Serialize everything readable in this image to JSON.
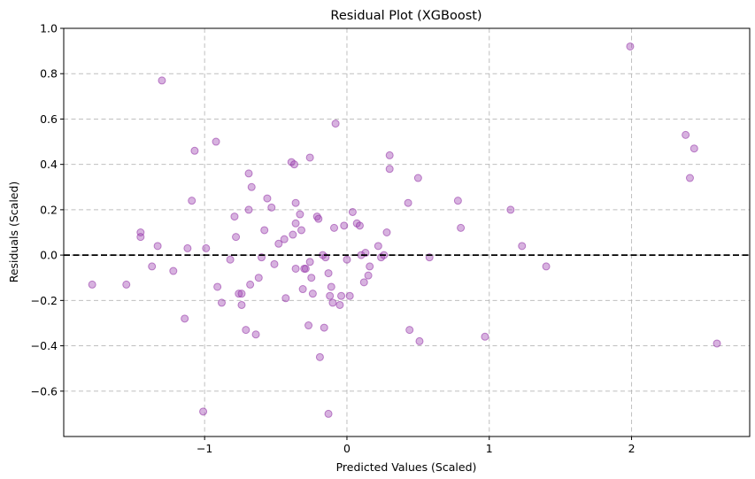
{
  "chart_data": {
    "type": "scatter",
    "title": "Residual Plot (XGBoost)",
    "xlabel": "Predicted Values (Scaled)",
    "ylabel": "Residuals (Scaled)",
    "xlim": [
      -1.99,
      2.83
    ],
    "ylim": [
      -0.8,
      1.0
    ],
    "x_ticks": [
      -1,
      0,
      1,
      2
    ],
    "x_tick_labels": [
      "−1",
      "0",
      "1",
      "2"
    ],
    "y_ticks": [
      -0.6,
      -0.4,
      -0.2,
      0.0,
      0.2,
      0.4,
      0.6,
      0.8,
      1.0
    ],
    "y_tick_labels": [
      "−0.6",
      "−0.4",
      "−0.2",
      "0.0",
      "0.2",
      "0.4",
      "0.6",
      "0.8",
      "1.0"
    ],
    "grid": true,
    "reference_line": {
      "y": 0,
      "style": "dashed",
      "color": "#000000"
    },
    "marker_color": "#9b3fae",
    "marker_edge_color": "#8e2aa3",
    "marker_opacity": 0.4,
    "points": [
      [
        -1.79,
        -0.13
      ],
      [
        -1.55,
        -0.13
      ],
      [
        -1.45,
        0.1
      ],
      [
        -1.45,
        0.08
      ],
      [
        -1.37,
        -0.05
      ],
      [
        -1.33,
        0.04
      ],
      [
        -1.3,
        0.77
      ],
      [
        -1.22,
        -0.07
      ],
      [
        -1.14,
        -0.28
      ],
      [
        -1.12,
        0.03
      ],
      [
        -1.09,
        0.24
      ],
      [
        -1.07,
        0.46
      ],
      [
        -1.01,
        -0.69
      ],
      [
        -0.99,
        0.03
      ],
      [
        -0.92,
        0.5
      ],
      [
        -0.91,
        -0.14
      ],
      [
        -0.88,
        -0.21
      ],
      [
        -0.82,
        -0.02
      ],
      [
        -0.79,
        0.17
      ],
      [
        -0.78,
        0.08
      ],
      [
        -0.76,
        -0.17
      ],
      [
        -0.74,
        -0.17
      ],
      [
        -0.74,
        -0.22
      ],
      [
        -0.71,
        -0.33
      ],
      [
        -0.69,
        0.36
      ],
      [
        -0.69,
        0.2
      ],
      [
        -0.68,
        -0.13
      ],
      [
        -0.67,
        0.3
      ],
      [
        -0.64,
        -0.35
      ],
      [
        -0.62,
        -0.1
      ],
      [
        -0.6,
        -0.01
      ],
      [
        -0.58,
        0.11
      ],
      [
        -0.56,
        0.25
      ],
      [
        -0.53,
        0.21
      ],
      [
        -0.51,
        -0.04
      ],
      [
        -0.48,
        0.05
      ],
      [
        -0.44,
        0.07
      ],
      [
        -0.43,
        -0.19
      ],
      [
        -0.39,
        0.41
      ],
      [
        -0.38,
        0.09
      ],
      [
        -0.37,
        0.4
      ],
      [
        -0.36,
        0.14
      ],
      [
        -0.36,
        0.23
      ],
      [
        -0.36,
        -0.06
      ],
      [
        -0.33,
        0.18
      ],
      [
        -0.32,
        0.11
      ],
      [
        -0.31,
        -0.15
      ],
      [
        -0.3,
        -0.06
      ],
      [
        -0.29,
        -0.06
      ],
      [
        -0.27,
        -0.31
      ],
      [
        -0.26,
        0.43
      ],
      [
        -0.26,
        -0.03
      ],
      [
        -0.25,
        -0.1
      ],
      [
        -0.24,
        -0.17
      ],
      [
        -0.21,
        0.17
      ],
      [
        -0.2,
        0.16
      ],
      [
        -0.19,
        -0.45
      ],
      [
        -0.17,
        0.0
      ],
      [
        -0.16,
        -0.32
      ],
      [
        -0.15,
        -0.01
      ],
      [
        -0.13,
        -0.7
      ],
      [
        -0.13,
        -0.08
      ],
      [
        -0.12,
        -0.18
      ],
      [
        -0.11,
        -0.14
      ],
      [
        -0.1,
        -0.21
      ],
      [
        -0.09,
        0.12
      ],
      [
        -0.08,
        0.58
      ],
      [
        -0.05,
        -0.22
      ],
      [
        -0.04,
        -0.18
      ],
      [
        -0.02,
        0.13
      ],
      [
        0.0,
        -0.02
      ],
      [
        0.02,
        -0.18
      ],
      [
        0.04,
        0.19
      ],
      [
        0.07,
        0.14
      ],
      [
        0.09,
        0.13
      ],
      [
        0.1,
        0.0
      ],
      [
        0.12,
        -0.12
      ],
      [
        0.13,
        0.01
      ],
      [
        0.15,
        -0.09
      ],
      [
        0.16,
        -0.05
      ],
      [
        0.22,
        0.04
      ],
      [
        0.24,
        -0.01
      ],
      [
        0.26,
        0.0
      ],
      [
        0.28,
        0.1
      ],
      [
        0.3,
        0.44
      ],
      [
        0.3,
        0.38
      ],
      [
        0.43,
        0.23
      ],
      [
        0.44,
        -0.33
      ],
      [
        0.5,
        0.34
      ],
      [
        0.51,
        -0.38
      ],
      [
        0.58,
        -0.01
      ],
      [
        0.78,
        0.24
      ],
      [
        0.8,
        0.12
      ],
      [
        0.97,
        -0.36
      ],
      [
        1.15,
        0.2
      ],
      [
        1.23,
        0.04
      ],
      [
        1.4,
        -0.05
      ],
      [
        1.99,
        0.92
      ],
      [
        2.38,
        0.53
      ],
      [
        2.41,
        0.34
      ],
      [
        2.44,
        0.47
      ],
      [
        2.6,
        -0.39
      ]
    ]
  }
}
